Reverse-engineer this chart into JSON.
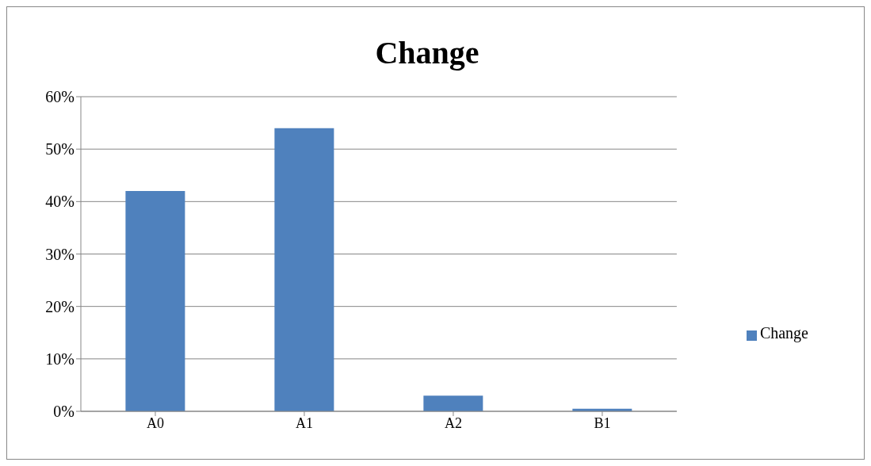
{
  "chart_data": {
    "type": "bar",
    "title": "Change",
    "categories": [
      "A0",
      "A1",
      "A2",
      "B1"
    ],
    "series": [
      {
        "name": "Change",
        "color": "#4f81bd",
        "values": [
          42,
          54,
          3,
          0.5
        ]
      }
    ],
    "ylim": [
      0,
      60
    ],
    "yticks": [
      {
        "value": 0,
        "label": "0%"
      },
      {
        "value": 10,
        "label": "10%"
      },
      {
        "value": 20,
        "label": "20%"
      },
      {
        "value": 30,
        "label": "30%"
      },
      {
        "value": 40,
        "label": "40%"
      },
      {
        "value": 50,
        "label": "50%"
      },
      {
        "value": 60,
        "label": "60%"
      }
    ],
    "grid": "y",
    "legend": "right"
  }
}
